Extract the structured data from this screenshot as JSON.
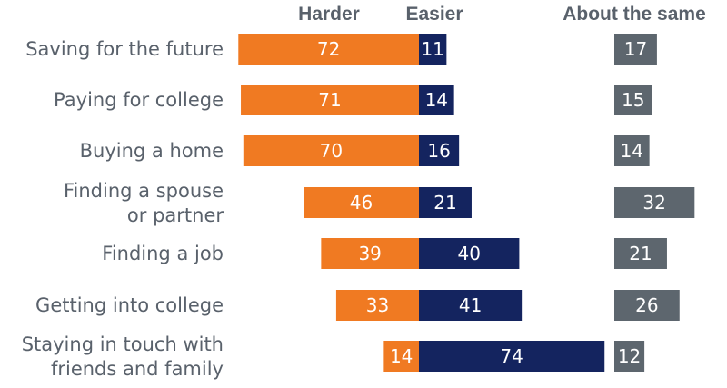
{
  "chart_data": {
    "type": "bar",
    "orientation": "horizontal-diverging",
    "title": "",
    "columns": [
      "Harder",
      "Easier",
      "About the same"
    ],
    "categories": [
      [
        "Saving for the future"
      ],
      [
        "Paying for college"
      ],
      [
        "Buying a home"
      ],
      [
        "Finding a spouse",
        "or partner"
      ],
      [
        "Finding a job"
      ],
      [
        "Getting into college"
      ],
      [
        "Staying in touch with",
        "friends and family"
      ]
    ],
    "series": [
      {
        "name": "Harder",
        "color": "#f07a22",
        "values": [
          72,
          71,
          70,
          46,
          39,
          33,
          14
        ]
      },
      {
        "name": "Easier",
        "color": "#14245f",
        "values": [
          11,
          14,
          16,
          21,
          40,
          41,
          74
        ]
      },
      {
        "name": "About the same",
        "color": "#5d666e",
        "values": [
          17,
          15,
          14,
          32,
          21,
          26,
          12
        ]
      }
    ],
    "legend": "top"
  }
}
